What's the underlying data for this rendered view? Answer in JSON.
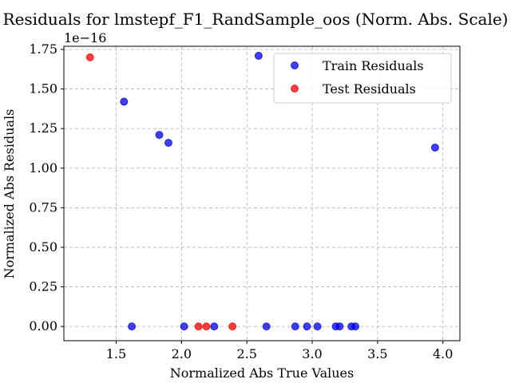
{
  "chart_data": {
    "type": "scatter",
    "title": "Residuals for lmstepf_F1_RandSample_oos (Norm. Abs. Scale)",
    "xlabel": "Normalized Abs True Values",
    "ylabel": "Normalized Abs Residuals",
    "y_offset_label": "1e−16",
    "xlim": [
      1.1,
      4.13
    ],
    "ylim": [
      -0.09,
      1.77
    ],
    "x_ticks": [
      1.5,
      2.0,
      2.5,
      3.0,
      3.5,
      4.0
    ],
    "x_tick_labels": [
      "1.5",
      "2.0",
      "2.5",
      "3.0",
      "3.5",
      "4.0"
    ],
    "y_ticks": [
      0.0,
      0.25,
      0.5,
      0.75,
      1.0,
      1.25,
      1.5,
      1.75
    ],
    "y_tick_labels": [
      "0.00",
      "0.25",
      "0.50",
      "0.75",
      "1.00",
      "1.25",
      "1.50",
      "1.75"
    ],
    "grid": true,
    "legend_position": "top-right",
    "series": [
      {
        "name": "Train Residuals",
        "color": "#0000dd",
        "points": [
          {
            "x": 1.56,
            "y": 1.42
          },
          {
            "x": 1.62,
            "y": 0.0
          },
          {
            "x": 1.83,
            "y": 1.21
          },
          {
            "x": 1.9,
            "y": 1.16
          },
          {
            "x": 2.02,
            "y": 0.0
          },
          {
            "x": 2.25,
            "y": 0.0
          },
          {
            "x": 2.59,
            "y": 1.71
          },
          {
            "x": 2.65,
            "y": 0.0
          },
          {
            "x": 2.87,
            "y": 0.0
          },
          {
            "x": 2.96,
            "y": 0.0
          },
          {
            "x": 3.04,
            "y": 0.0
          },
          {
            "x": 3.18,
            "y": 0.0
          },
          {
            "x": 3.21,
            "y": 0.0
          },
          {
            "x": 3.3,
            "y": 0.0
          },
          {
            "x": 3.33,
            "y": 0.0
          },
          {
            "x": 3.94,
            "y": 1.13
          }
        ]
      },
      {
        "name": "Test Residuals",
        "color": "#ee0000",
        "points": [
          {
            "x": 1.3,
            "y": 1.7
          },
          {
            "x": 2.13,
            "y": 0.0
          },
          {
            "x": 2.19,
            "y": 0.0
          },
          {
            "x": 2.39,
            "y": 0.0
          }
        ]
      }
    ]
  }
}
